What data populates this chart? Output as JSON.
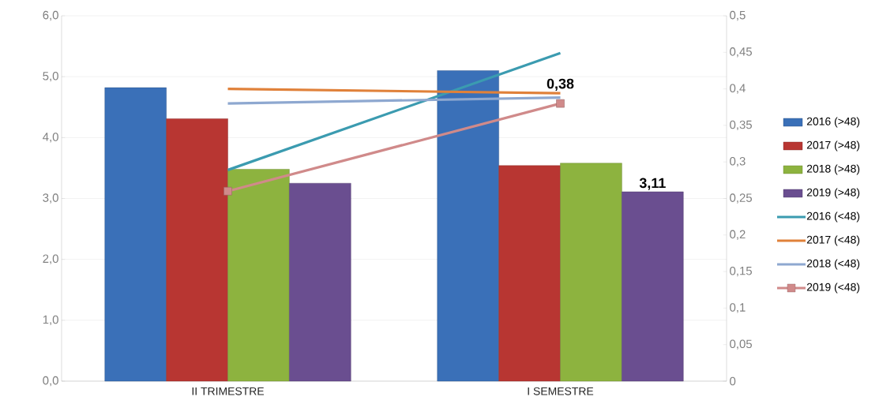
{
  "chart_data": {
    "type": "bar",
    "categories": [
      "II TRIMESTRE",
      "I SEMESTRE"
    ],
    "series": [
      {
        "name": "2016 (>48)",
        "color": "#3a70b8",
        "values": [
          4.82,
          5.1
        ]
      },
      {
        "name": "2017 (>48)",
        "color": "#b83632",
        "values": [
          4.31,
          3.54
        ]
      },
      {
        "name": "2018 (>48)",
        "color": "#8db33f",
        "values": [
          3.48,
          3.58
        ]
      },
      {
        "name": "2019 (>48)",
        "color": "#6a4e90",
        "values": [
          3.25,
          3.11
        ],
        "value_labels": [
          null,
          "3,11"
        ]
      },
      {
        "name": "2016 (<48)",
        "type": "line",
        "axis": "y2",
        "color": "#3b9bb0",
        "values": [
          0.289,
          0.449
        ]
      },
      {
        "name": "2017 (<48)",
        "type": "line",
        "axis": "y2",
        "color": "#e0813a",
        "values": [
          0.4,
          0.394
        ]
      },
      {
        "name": "2018 (<48)",
        "type": "line",
        "axis": "y2",
        "color": "#8ea8d0",
        "values": [
          0.38,
          0.388
        ]
      },
      {
        "name": "2019 (<48)",
        "type": "line",
        "axis": "y2",
        "color": "#d08a8a",
        "marker": "square",
        "values": [
          0.26,
          0.38
        ],
        "value_labels": [
          null,
          "0,38"
        ]
      }
    ],
    "ylim": [
      0,
      6
    ],
    "yticks": [
      {
        "value": 0,
        "label": "0,0"
      },
      {
        "value": 1,
        "label": "1,0"
      },
      {
        "value": 2,
        "label": "2,0"
      },
      {
        "value": 3,
        "label": "3,0"
      },
      {
        "value": 4,
        "label": "4,0"
      },
      {
        "value": 5,
        "label": "5,0"
      },
      {
        "value": 6,
        "label": "6,0"
      }
    ],
    "y2lim": [
      0,
      0.5
    ],
    "y2ticks": [
      0,
      {
        "value": 0.05,
        "label": "0,05"
      },
      {
        "value": 0.1,
        "label": "0,1"
      },
      {
        "value": 0.15,
        "label": "0,15"
      },
      {
        "value": 0.2,
        "label": "0,2"
      },
      {
        "value": 0.25,
        "label": "0,25"
      },
      {
        "value": 0.3,
        "label": "0,3"
      },
      {
        "value": 0.35,
        "label": "0,35"
      },
      {
        "value": 0.4,
        "label": "0,4"
      },
      {
        "value": 0.45,
        "label": "0,45"
      },
      {
        "value": 0.5,
        "label": "0,5"
      }
    ],
    "grid": "y",
    "legend": "right"
  }
}
